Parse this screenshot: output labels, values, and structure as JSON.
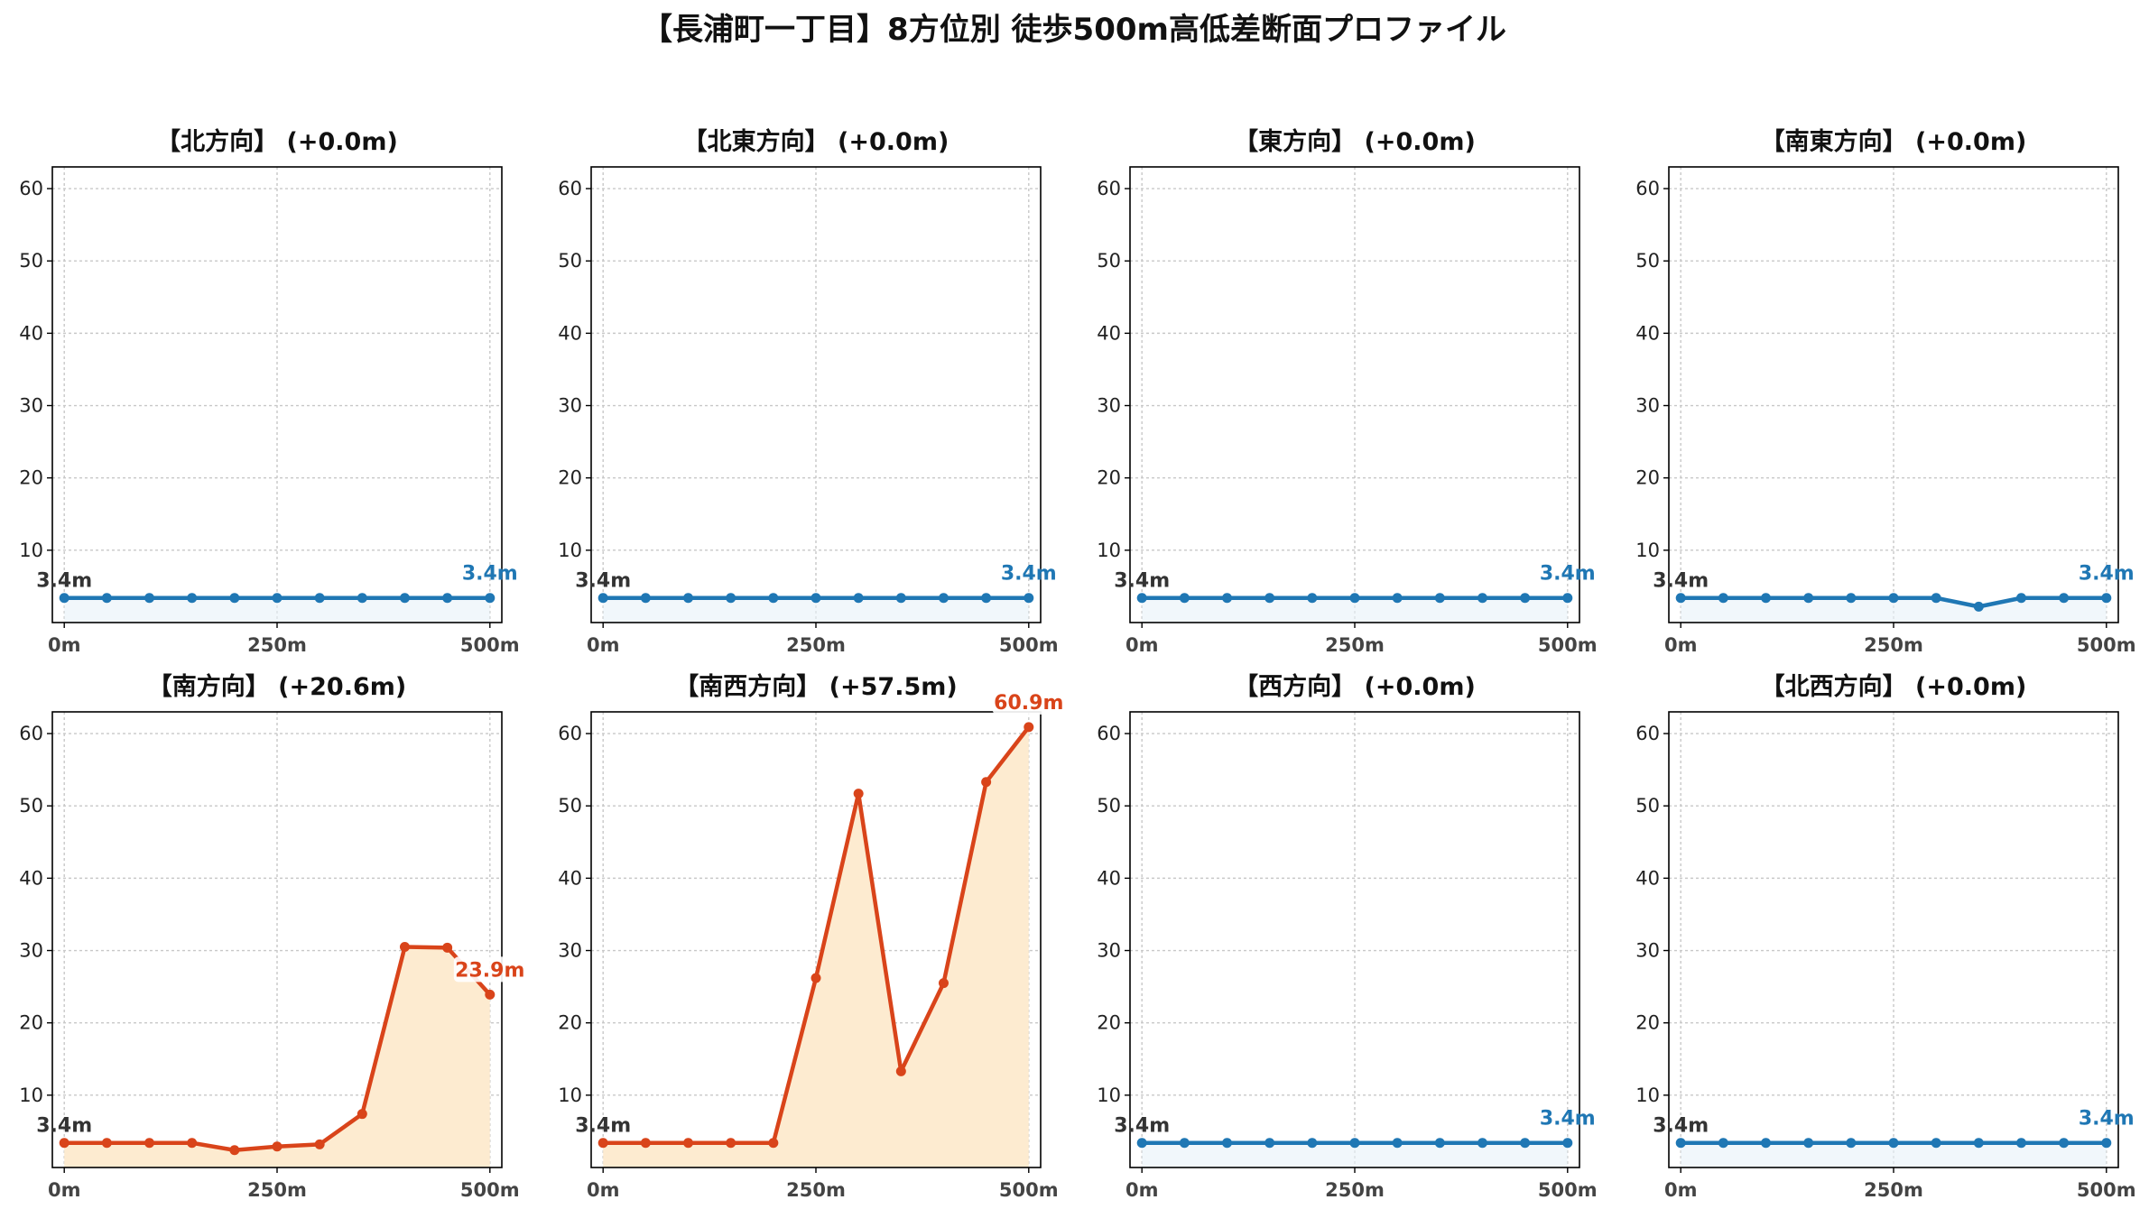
{
  "title": "【長浦町一丁目】8方位別 徒歩500m高低差断面プロファイル",
  "colors": {
    "flat_line": "#1f77b4",
    "climb_line": "#d9441a",
    "climb_fill": "#fdebd0",
    "flat_fill": "#e8f1f8",
    "start_label": "#333333",
    "grid": "#c8c8c8"
  },
  "chart_data": [
    {
      "type": "line",
      "title": "【北方向】 (+0.0m)",
      "x": [
        0,
        50,
        100,
        150,
        200,
        250,
        300,
        350,
        400,
        450,
        500
      ],
      "y": [
        3.4,
        3.4,
        3.4,
        3.4,
        3.4,
        3.4,
        3.4,
        3.4,
        3.4,
        3.4,
        3.4
      ],
      "start_label": "3.4m",
      "end_label": "3.4m",
      "style": "flat",
      "ylim": [
        0,
        63
      ],
      "yticks": [
        10,
        20,
        30,
        40,
        50,
        60
      ],
      "xticks": [
        0,
        250,
        500
      ],
      "xtick_labels": [
        "0m",
        "250m",
        "500m"
      ],
      "grid": true
    },
    {
      "type": "line",
      "title": "【北東方向】 (+0.0m)",
      "x": [
        0,
        50,
        100,
        150,
        200,
        250,
        300,
        350,
        400,
        450,
        500
      ],
      "y": [
        3.4,
        3.4,
        3.4,
        3.4,
        3.4,
        3.4,
        3.4,
        3.4,
        3.4,
        3.4,
        3.4
      ],
      "start_label": "3.4m",
      "end_label": "3.4m",
      "style": "flat",
      "ylim": [
        0,
        63
      ],
      "yticks": [
        10,
        20,
        30,
        40,
        50,
        60
      ],
      "xticks": [
        0,
        250,
        500
      ],
      "xtick_labels": [
        "0m",
        "250m",
        "500m"
      ],
      "grid": true
    },
    {
      "type": "line",
      "title": "【東方向】 (+0.0m)",
      "x": [
        0,
        50,
        100,
        150,
        200,
        250,
        300,
        350,
        400,
        450,
        500
      ],
      "y": [
        3.4,
        3.4,
        3.4,
        3.4,
        3.4,
        3.4,
        3.4,
        3.4,
        3.4,
        3.4,
        3.4
      ],
      "start_label": "3.4m",
      "end_label": "3.4m",
      "style": "flat",
      "ylim": [
        0,
        63
      ],
      "yticks": [
        10,
        20,
        30,
        40,
        50,
        60
      ],
      "xticks": [
        0,
        250,
        500
      ],
      "xtick_labels": [
        "0m",
        "250m",
        "500m"
      ],
      "grid": true
    },
    {
      "type": "line",
      "title": "【南東方向】 (+0.0m)",
      "x": [
        0,
        50,
        100,
        150,
        200,
        250,
        300,
        350,
        400,
        450,
        500
      ],
      "y": [
        3.4,
        3.4,
        3.4,
        3.4,
        3.4,
        3.4,
        3.4,
        2.2,
        3.4,
        3.4,
        3.4
      ],
      "start_label": "3.4m",
      "end_label": "3.4m",
      "style": "flat",
      "ylim": [
        0,
        63
      ],
      "yticks": [
        10,
        20,
        30,
        40,
        50,
        60
      ],
      "xticks": [
        0,
        250,
        500
      ],
      "xtick_labels": [
        "0m",
        "250m",
        "500m"
      ],
      "grid": true
    },
    {
      "type": "area",
      "title": "【南方向】 (+20.6m)",
      "x": [
        0,
        50,
        100,
        150,
        200,
        250,
        300,
        350,
        400,
        450,
        500
      ],
      "y": [
        3.4,
        3.4,
        3.4,
        3.4,
        2.4,
        2.9,
        3.2,
        7.4,
        30.5,
        30.4,
        23.9
      ],
      "start_label": "3.4m",
      "end_label": "23.9m",
      "style": "climb",
      "ylim": [
        0,
        63
      ],
      "yticks": [
        10,
        20,
        30,
        40,
        50,
        60
      ],
      "xticks": [
        0,
        250,
        500
      ],
      "xtick_labels": [
        "0m",
        "250m",
        "500m"
      ],
      "grid": true
    },
    {
      "type": "area",
      "title": "【南西方向】 (+57.5m)",
      "x": [
        0,
        50,
        100,
        150,
        200,
        250,
        300,
        350,
        400,
        450,
        500
      ],
      "y": [
        3.4,
        3.4,
        3.4,
        3.4,
        3.4,
        26.2,
        51.7,
        13.3,
        25.5,
        53.3,
        60.9
      ],
      "start_label": "3.4m",
      "end_label": "60.9m",
      "style": "climb",
      "ylim": [
        0,
        63
      ],
      "yticks": [
        10,
        20,
        30,
        40,
        50,
        60
      ],
      "xticks": [
        0,
        250,
        500
      ],
      "xtick_labels": [
        "0m",
        "250m",
        "500m"
      ],
      "grid": true
    },
    {
      "type": "line",
      "title": "【西方向】 (+0.0m)",
      "x": [
        0,
        50,
        100,
        150,
        200,
        250,
        300,
        350,
        400,
        450,
        500
      ],
      "y": [
        3.4,
        3.4,
        3.4,
        3.4,
        3.4,
        3.4,
        3.4,
        3.4,
        3.4,
        3.4,
        3.4
      ],
      "start_label": "3.4m",
      "end_label": "3.4m",
      "style": "flat",
      "ylim": [
        0,
        63
      ],
      "yticks": [
        10,
        20,
        30,
        40,
        50,
        60
      ],
      "xticks": [
        0,
        250,
        500
      ],
      "xtick_labels": [
        "0m",
        "250m",
        "500m"
      ],
      "grid": true
    },
    {
      "type": "line",
      "title": "【北西方向】 (+0.0m)",
      "x": [
        0,
        50,
        100,
        150,
        200,
        250,
        300,
        350,
        400,
        450,
        500
      ],
      "y": [
        3.4,
        3.4,
        3.4,
        3.4,
        3.4,
        3.4,
        3.4,
        3.4,
        3.4,
        3.4,
        3.4
      ],
      "start_label": "3.4m",
      "end_label": "3.4m",
      "style": "flat",
      "ylim": [
        0,
        63
      ],
      "yticks": [
        10,
        20,
        30,
        40,
        50,
        60
      ],
      "xticks": [
        0,
        250,
        500
      ],
      "xtick_labels": [
        "0m",
        "250m",
        "500m"
      ],
      "grid": true
    }
  ]
}
